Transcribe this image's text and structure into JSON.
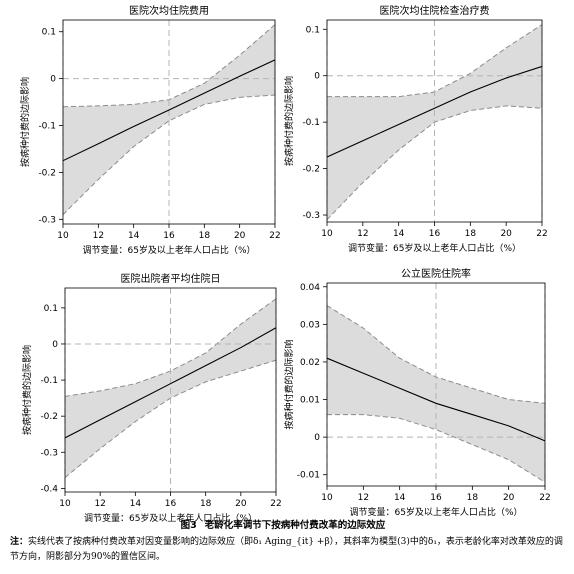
{
  "figure": {
    "number": "图3",
    "title": "老龄化率调节下按病种付费改革的边际效应",
    "note_label": "注：",
    "note": "实线代表了按病种付费改革对因变量影响的边际效应（即δ₁ Aging_{it} +β），其斜率为模型(3)中的δ₁，表示老龄化率对改革效应的调节方向，阴影部分为90%的置信区间。"
  },
  "colors": {
    "line": "#000000",
    "ci_fill": "#dcdcdc",
    "ci_border": "#8c8c8c",
    "ref_line": "#b4b4b4",
    "frame": "#000000"
  },
  "chart_data": [
    {
      "type": "line",
      "title": "医院次均住院费用",
      "xlabel": "调节变量：65岁及以上老年人口占比（%）",
      "ylabel": "按病种付费的边际影响",
      "xlim": [
        10,
        22
      ],
      "ylim": [
        -0.31,
        0.125
      ],
      "xticks": [
        10,
        12,
        14,
        16,
        18,
        20,
        22
      ],
      "yticks": [
        -0.3,
        -0.2,
        -0.1,
        0,
        0.1
      ],
      "ytick_labels": [
        "-0.3",
        "-0.2",
        "-0.1",
        "0",
        "0.1"
      ],
      "ref_x": 16,
      "ref_y": 0,
      "x": [
        10,
        12,
        14,
        16,
        18,
        20,
        22
      ],
      "estimate": [
        -0.175,
        -0.139,
        -0.102,
        -0.067,
        -0.031,
        0.005,
        0.04
      ],
      "ci_lower": [
        -0.29,
        -0.215,
        -0.145,
        -0.09,
        -0.055,
        -0.04,
        -0.035
      ],
      "ci_upper": [
        -0.06,
        -0.058,
        -0.055,
        -0.045,
        -0.01,
        0.05,
        0.115
      ]
    },
    {
      "type": "line",
      "title": "医院次均住院检查治疗费",
      "xlabel": "调节变量：65岁及以上老年人口占比（%）",
      "ylabel": "按病种付费的边际影响",
      "xlim": [
        10,
        22
      ],
      "ylim": [
        -0.315,
        0.12
      ],
      "xticks": [
        10,
        12,
        14,
        16,
        18,
        20,
        22
      ],
      "yticks": [
        -0.3,
        -0.2,
        -0.1,
        0,
        0.1
      ],
      "ytick_labels": [
        "-0.3",
        "-0.2",
        "-0.1",
        "0",
        "0.1"
      ],
      "ref_x": 16,
      "ref_y": 0,
      "x": [
        10,
        12,
        14,
        16,
        18,
        20,
        22
      ],
      "estimate": [
        -0.175,
        -0.14,
        -0.105,
        -0.07,
        -0.035,
        -0.005,
        0.02
      ],
      "ci_lower": [
        -0.31,
        -0.23,
        -0.16,
        -0.1,
        -0.075,
        -0.065,
        -0.07
      ],
      "ci_upper": [
        -0.045,
        -0.045,
        -0.045,
        -0.035,
        0.005,
        0.06,
        0.11
      ]
    },
    {
      "type": "line",
      "title": "医院出院者平均住院日",
      "xlabel": "调节变量：65岁及以上老年人口占比（%）",
      "ylabel": "按病种付费的边际影响",
      "xlim": [
        10,
        22
      ],
      "ylim": [
        -0.41,
        0.155
      ],
      "xticks": [
        10,
        12,
        14,
        16,
        18,
        20,
        22
      ],
      "yticks": [
        -0.4,
        -0.3,
        -0.2,
        -0.1,
        0,
        0.1
      ],
      "ytick_labels": [
        "-0.4",
        "-0.3",
        "-0.2",
        "-0.1",
        "0",
        "0.1"
      ],
      "ref_x": 16,
      "ref_y": 0,
      "x": [
        10,
        12,
        14,
        16,
        18,
        20,
        22
      ],
      "estimate": [
        -0.26,
        -0.21,
        -0.16,
        -0.11,
        -0.06,
        -0.01,
        0.045
      ],
      "ci_lower": [
        -0.37,
        -0.29,
        -0.215,
        -0.15,
        -0.105,
        -0.075,
        -0.045
      ],
      "ci_upper": [
        -0.145,
        -0.13,
        -0.11,
        -0.075,
        -0.025,
        0.055,
        0.125
      ]
    },
    {
      "type": "line",
      "title": "公立医院住院率",
      "xlabel": "调节变量：65岁及以上老年人口占比（%）",
      "ylabel": "按病种付费的边际影响",
      "xlim": [
        10,
        22
      ],
      "ylim": [
        -0.013,
        0.041
      ],
      "xticks": [
        10,
        12,
        14,
        16,
        18,
        20,
        22
      ],
      "yticks": [
        -0.01,
        0,
        0.01,
        0.02,
        0.03,
        0.04
      ],
      "ytick_labels": [
        "-0.01",
        "0",
        "0.01",
        "0.02",
        "0.03",
        "0.04"
      ],
      "ref_x": 16,
      "ref_y": 0,
      "x": [
        10,
        12,
        14,
        16,
        18,
        20,
        22
      ],
      "estimate": [
        0.021,
        0.017,
        0.013,
        0.009,
        0.006,
        0.003,
        -0.001
      ],
      "ci_lower": [
        0.006,
        0.006,
        0.005,
        0.002,
        -0.002,
        -0.006,
        -0.012
      ],
      "ci_upper": [
        0.035,
        0.029,
        0.021,
        0.016,
        0.013,
        0.01,
        0.009
      ]
    }
  ]
}
